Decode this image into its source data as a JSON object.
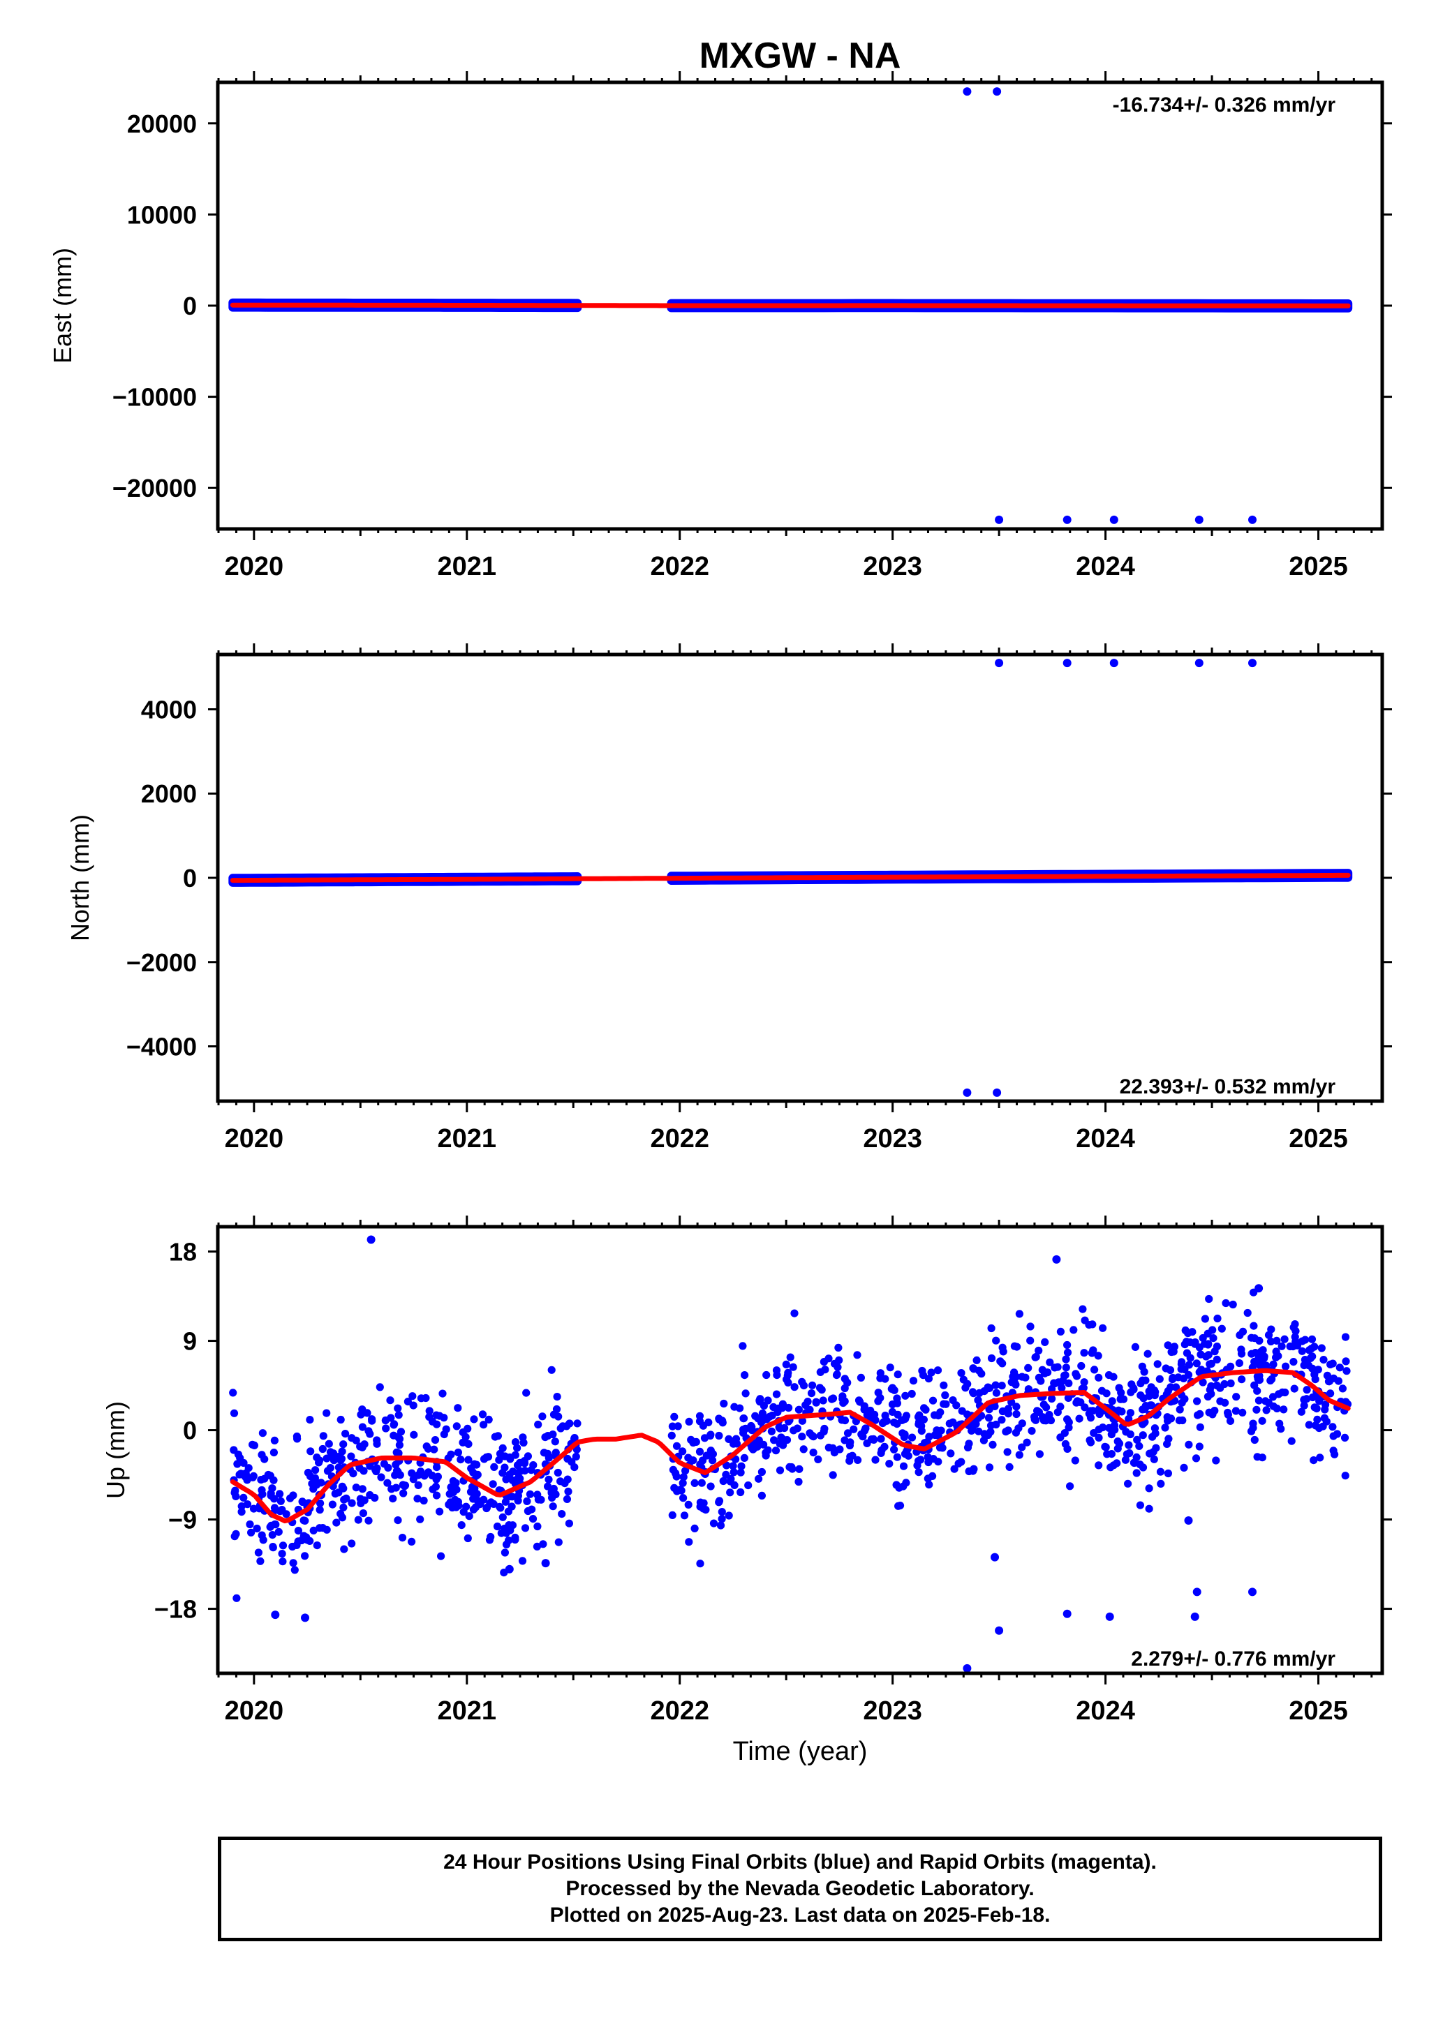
{
  "title": "MXGW - NA",
  "colors": {
    "final": "#0000ff",
    "rapid": "#ff00ff",
    "model": "#ff0000",
    "axis": "#000000"
  },
  "footer": {
    "line1": "24 Hour Positions Using Final Orbits (blue) and Rapid Orbits (magenta).",
    "line2": "Processed by the Nevada Geodetic Laboratory.",
    "line3": "Plotted on 2025-Aug-23. Last data on 2025-Feb-18."
  },
  "chart_data": [
    {
      "type": "scatter",
      "ylabel": "East (mm)",
      "rate": "-16.734+/- 0.326 mm/yr",
      "rate_pos": "top-right",
      "xlim": [
        2019.83,
        2025.3
      ],
      "ylim": [
        -24500,
        24500
      ],
      "yticks": [
        20000,
        10000,
        0,
        -10000,
        -20000
      ],
      "ytick_labels": [
        "20000",
        "10000",
        "0",
        "−10000",
        "−20000"
      ],
      "xticks": [
        2020,
        2021,
        2022,
        2023,
        2024,
        2025
      ],
      "data_band": {
        "segments": [
          [
            2019.9,
            2021.52
          ],
          [
            2021.96,
            2025.14
          ]
        ],
        "start": 60,
        "end": -30,
        "half_width": 260
      },
      "model": [
        [
          2019.9,
          60
        ],
        [
          2021.0,
          40
        ],
        [
          2022.0,
          0
        ],
        [
          2023.0,
          5
        ],
        [
          2024.0,
          -10
        ],
        [
          2025.14,
          -30
        ]
      ],
      "outliers": [
        [
          2023.35,
          23500
        ],
        [
          2023.49,
          23500
        ],
        [
          2023.5,
          -23500
        ],
        [
          2023.82,
          -23500
        ],
        [
          2024.04,
          -23500
        ],
        [
          2024.44,
          -23500
        ],
        [
          2024.69,
          -23500
        ]
      ]
    },
    {
      "type": "scatter",
      "ylabel": "North (mm)",
      "rate": "22.393+/- 0.532 mm/yr",
      "rate_pos": "bottom-right",
      "xlim": [
        2019.83,
        2025.3
      ],
      "ylim": [
        -5300,
        5300
      ],
      "yticks": [
        4000,
        2000,
        0,
        -2000,
        -4000
      ],
      "ytick_labels": [
        "4000",
        "2000",
        "0",
        "−2000",
        "−4000"
      ],
      "xticks": [
        2020,
        2021,
        2022,
        2023,
        2024,
        2025
      ],
      "data_band": {
        "segments": [
          [
            2019.9,
            2021.52
          ],
          [
            2021.96,
            2025.14
          ]
        ],
        "start": -60,
        "end": 60,
        "half_width": 55
      },
      "model": [
        [
          2019.9,
          -60
        ],
        [
          2021.0,
          -35
        ],
        [
          2022.0,
          -10
        ],
        [
          2023.0,
          15
        ],
        [
          2024.0,
          35
        ],
        [
          2025.14,
          60
        ]
      ],
      "outliers": [
        [
          2023.5,
          5100
        ],
        [
          2023.82,
          5100
        ],
        [
          2024.04,
          5100
        ],
        [
          2024.44,
          5100
        ],
        [
          2024.69,
          5100
        ],
        [
          2023.35,
          -5100
        ],
        [
          2023.49,
          -5100
        ]
      ]
    },
    {
      "type": "scatter",
      "ylabel": "Up (mm)",
      "xlabel": "Time (year)",
      "rate": "2.279+/- 0.776 mm/yr",
      "rate_pos": "bottom-right",
      "xlim": [
        2019.83,
        2025.3
      ],
      "ylim": [
        -24.5,
        20.5
      ],
      "yticks": [
        18,
        9,
        0,
        -9,
        -18
      ],
      "ytick_labels": [
        "18",
        "9",
        "0",
        "−9",
        "−18"
      ],
      "xticks": [
        2020,
        2021,
        2022,
        2023,
        2024,
        2025
      ],
      "data_band": {
        "segments": [
          [
            2019.9,
            2021.52
          ],
          [
            2021.96,
            2025.14
          ]
        ],
        "noise": 3.3
      },
      "model": [
        [
          2019.9,
          -5.2
        ],
        [
          2020.0,
          -6.5
        ],
        [
          2020.08,
          -8.5
        ],
        [
          2020.15,
          -9.2
        ],
        [
          2020.25,
          -8
        ],
        [
          2020.35,
          -5.5
        ],
        [
          2020.45,
          -3.5
        ],
        [
          2020.6,
          -2.8
        ],
        [
          2020.75,
          -2.8
        ],
        [
          2020.9,
          -3.2
        ],
        [
          2021.0,
          -4.8
        ],
        [
          2021.15,
          -6.6
        ],
        [
          2021.3,
          -5.2
        ],
        [
          2021.45,
          -2.5
        ],
        [
          2021.52,
          -1.2
        ],
        [
          2021.6,
          -0.9
        ],
        [
          2021.7,
          -0.9
        ],
        [
          2021.82,
          -0.5
        ],
        [
          2021.9,
          -1.2
        ],
        [
          2022.0,
          -3.3
        ],
        [
          2022.12,
          -4.3
        ],
        [
          2022.25,
          -2.5
        ],
        [
          2022.4,
          0.3
        ],
        [
          2022.5,
          1.3
        ],
        [
          2022.7,
          1.6
        ],
        [
          2022.8,
          1.8
        ],
        [
          2022.9,
          0.6
        ],
        [
          2023.05,
          -1.5
        ],
        [
          2023.15,
          -1.9
        ],
        [
          2023.3,
          -0.2
        ],
        [
          2023.45,
          2.8
        ],
        [
          2023.6,
          3.5
        ],
        [
          2023.75,
          3.7
        ],
        [
          2023.9,
          3.8
        ],
        [
          2024.0,
          2.2
        ],
        [
          2024.1,
          0.5
        ],
        [
          2024.2,
          1.4
        ],
        [
          2024.3,
          3.2
        ],
        [
          2024.45,
          5.4
        ],
        [
          2024.6,
          5.8
        ],
        [
          2024.75,
          6.0
        ],
        [
          2024.88,
          5.8
        ],
        [
          2024.97,
          4.5
        ],
        [
          2025.05,
          3.0
        ],
        [
          2025.14,
          2.2
        ]
      ],
      "outliers": [
        [
          2020.55,
          19.2
        ],
        [
          2023.35,
          -24
        ],
        [
          2023.48,
          -12.8
        ],
        [
          2023.5,
          -20.2
        ],
        [
          2023.77,
          17.2
        ],
        [
          2023.82,
          -18.5
        ],
        [
          2024.02,
          -18.8
        ],
        [
          2024.42,
          -18.8
        ],
        [
          2024.43,
          -16.3
        ],
        [
          2024.69,
          -16.3
        ],
        [
          2024.39,
          -9.1
        ],
        [
          2024.72,
          14.3
        ],
        [
          2020.1,
          -18.6
        ],
        [
          2020.24,
          -18.9
        ],
        [
          2021.2,
          -14
        ],
        [
          2021.37,
          -13.4
        ]
      ]
    }
  ]
}
